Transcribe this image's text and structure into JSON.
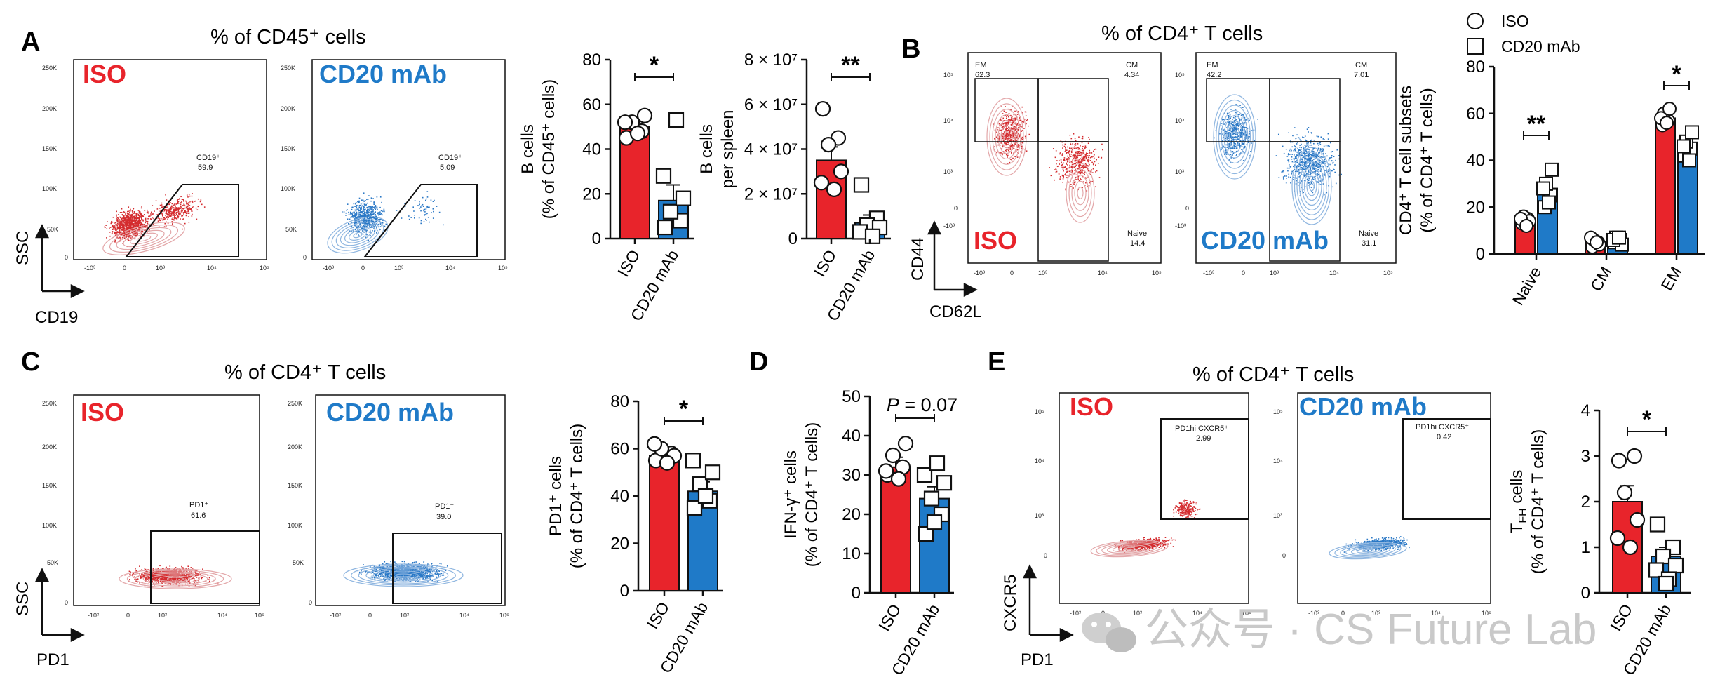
{
  "watermark": {
    "text": "公众号 · CS Future Lab",
    "icon": "wechat-icon"
  },
  "colors": {
    "iso": "#e8242b",
    "cd20": "#1f7ac8",
    "iso_dot": "#d42c2f",
    "cd20_dot": "#2a78c6",
    "iso_contour": "#e3a7a9",
    "cd20_contour": "#8fb6e0"
  },
  "panels": {
    "A": {
      "letter": "A",
      "title": "% of CD45⁺ cells",
      "xaxis": "CD19",
      "yaxis": "SSC",
      "iso_label": "ISO",
      "cd20_label": "CD20 mAb",
      "gate_iso": {
        "name": "CD19⁺",
        "value": "59.9"
      },
      "gate_cd20": {
        "name": "CD19⁺",
        "value": "5.09"
      },
      "y_ticks": [
        "250K",
        "200K",
        "150K",
        "100K",
        "50K",
        "0"
      ],
      "x_ticks": [
        "-10³",
        "0",
        "10³",
        "10⁴",
        "10⁵"
      ]
    },
    "B": {
      "letter": "B",
      "title": "% of CD4⁺ T cells",
      "xaxis": "CD62L",
      "yaxis": "CD44",
      "iso_label": "ISO",
      "cd20_label": "CD20 mAb",
      "iso_gates": {
        "em_name": "EM",
        "em": "62.3",
        "cm_name": "CM",
        "cm": "4.34",
        "naive_name": "Naive",
        "naive": "14.4"
      },
      "cd20_gates": {
        "em_name": "EM",
        "em": "42.2",
        "cm_name": "CM",
        "cm": "7.01",
        "naive_name": "Naive",
        "naive": "31.1"
      },
      "y_ticks": [
        "10⁵",
        "10⁴",
        "10³",
        "0",
        "-10³"
      ],
      "x_ticks": [
        "-10³",
        "0",
        "10³",
        "10⁴",
        "10⁵"
      ],
      "legend": {
        "iso": "ISO",
        "cd20": "CD20 mAb"
      }
    },
    "C": {
      "letter": "C",
      "title": "% of CD4⁺ T cells",
      "xaxis": "PD1",
      "yaxis": "SSC",
      "iso_label": "ISO",
      "cd20_label": "CD20 mAb",
      "gate_iso": {
        "name": "PD1⁺",
        "value": "61.6"
      },
      "gate_cd20": {
        "name": "PD1⁺",
        "value": "39.0"
      },
      "y_ticks": [
        "250K",
        "200K",
        "150K",
        "100K",
        "50K",
        "0"
      ],
      "x_ticks": [
        "-10³",
        "0",
        "10³",
        "10⁴",
        "10⁵"
      ]
    },
    "D": {
      "letter": "D"
    },
    "E": {
      "letter": "E",
      "title": "% of  CD4⁺ T cells",
      "xaxis": "PD1",
      "yaxis": "CXCR5",
      "iso_label": "ISO",
      "cd20_label": "CD20 mAb",
      "gate_iso": {
        "name": "PD1hi CXCR5⁺",
        "value": "2.99"
      },
      "gate_cd20": {
        "name": "PD1hi CXCR5⁺",
        "value": "0.42"
      },
      "y_ticks": [
        "10⁵",
        "10⁴",
        "10³",
        "0"
      ],
      "x_ticks": [
        "-10³",
        "0",
        "10³",
        "10⁴",
        "10⁵"
      ]
    }
  },
  "chart_data": [
    {
      "id": "A-bcells-pct",
      "type": "bar",
      "ylabel_lines": [
        "B cells",
        "(% of CD45⁺ cells)"
      ],
      "categories": [
        "ISO",
        "CD20 mAb"
      ],
      "ylim": [
        0,
        80
      ],
      "yticks": [
        "0",
        "20",
        "40",
        "60",
        "80"
      ],
      "values": [
        50,
        17
      ],
      "errors": [
        3.5,
        7
      ],
      "points": [
        [
          45,
          48,
          52,
          55,
          52,
          47
        ],
        [
          5,
          8,
          12,
          18,
          28,
          53
        ]
      ],
      "significance": "*"
    },
    {
      "id": "A-bcells-spleen",
      "type": "bar",
      "ylabel_lines": [
        "B cells",
        "per spleen"
      ],
      "categories": [
        "ISO",
        "CD20 mAb"
      ],
      "ylim": [
        0,
        80000000
      ],
      "yticks": [
        "0",
        "2 × 10⁷",
        "4 × 10⁷",
        "6 × 10⁷",
        "8 × 10⁷"
      ],
      "values": [
        35000000,
        7000000
      ],
      "errors": [
        6000000,
        3500000
      ],
      "points": [
        [
          58000000,
          45000000,
          42000000,
          30000000,
          25000000,
          22000000
        ],
        [
          24000000,
          9000000,
          6000000,
          5000000,
          3000000,
          1000000
        ]
      ],
      "significance": "**"
    },
    {
      "id": "B-subsets",
      "type": "bar",
      "ylabel_lines": [
        "CD4⁺ T cell subsets",
        "(% of CD4⁺ T cells)"
      ],
      "categories": [
        "Naive",
        "CM",
        "EM"
      ],
      "series": [
        {
          "name": "ISO",
          "values": [
            14,
            5,
            58
          ],
          "errors": [
            1.5,
            1,
            2
          ],
          "points": [
            [
              13,
              15,
              16,
              14,
              15,
              12
            ],
            [
              3,
              5,
              6,
              4,
              7,
              5
            ],
            [
              55,
              57,
              60,
              62,
              58,
              56
            ]
          ]
        },
        {
          "name": "CD20 mAb",
          "values": [
            28,
            6,
            46
          ],
          "errors": [
            4,
            1,
            4
          ],
          "points": [
            [
              20,
              25,
              30,
              36,
              28,
              22
            ],
            [
              5,
              6,
              7,
              4,
              6,
              7
            ],
            [
              42,
              45,
              48,
              52,
              46,
              40
            ]
          ]
        }
      ],
      "ylim": [
        0,
        80
      ],
      "yticks": [
        "0",
        "20",
        "40",
        "60",
        "80"
      ],
      "significance": [
        "**",
        "",
        "*"
      ]
    },
    {
      "id": "C-pd1",
      "type": "bar",
      "ylabel_lines": [
        "PD1⁺ cells",
        "(% of CD4⁺ T cells)"
      ],
      "categories": [
        "ISO",
        "CD20 mAb"
      ],
      "ylim": [
        0,
        80
      ],
      "yticks": [
        "0",
        "20",
        "40",
        "60",
        "80"
      ],
      "values": [
        57,
        42
      ],
      "errors": [
        2,
        4
      ],
      "points": [
        [
          55,
          58,
          60,
          57,
          62,
          54
        ],
        [
          35,
          38,
          45,
          50,
          55,
          40
        ]
      ],
      "significance": "*"
    },
    {
      "id": "D-ifng",
      "type": "bar",
      "ylabel_lines": [
        "IFN-γ⁺ cells",
        "(% of CD4⁺ T cells)"
      ],
      "categories": [
        "ISO",
        "CD20 mAb"
      ],
      "ylim": [
        0,
        50
      ],
      "yticks": [
        "0",
        "10",
        "20",
        "30",
        "40",
        "50"
      ],
      "values": [
        32,
        24
      ],
      "errors": [
        2.5,
        3
      ],
      "points": [
        [
          30,
          32,
          35,
          38,
          31,
          29
        ],
        [
          15,
          20,
          24,
          28,
          30,
          33,
          18
        ]
      ],
      "significance_p": "P",
      "significance_rest": " = 0.07"
    },
    {
      "id": "E-tfh",
      "type": "bar",
      "ylabel_lines": [
        "T_FH cells",
        "(% of CD4⁺ T cells)"
      ],
      "categories": [
        "ISO",
        "CD20 mAb"
      ],
      "ylim": [
        0,
        4
      ],
      "yticks": [
        "0",
        "1",
        "2",
        "3",
        "4"
      ],
      "values": [
        2.0,
        0.8
      ],
      "errors": [
        0.35,
        0.2
      ],
      "points": [
        [
          2.9,
          3.0,
          2.2,
          1.6,
          1.2,
          1.0
        ],
        [
          1.5,
          1.0,
          0.8,
          0.6,
          0.5,
          0.3,
          0.2
        ]
      ],
      "significance": "*"
    }
  ]
}
